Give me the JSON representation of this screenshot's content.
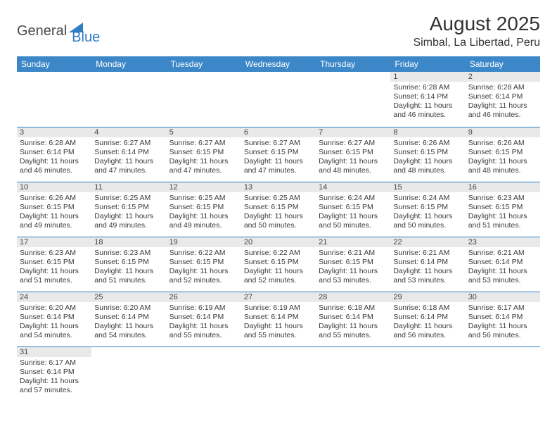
{
  "logo": {
    "main": "General",
    "sub": "Blue"
  },
  "title": "August 2025",
  "location": "Simbal, La Libertad, Peru",
  "colors": {
    "header_bg": "#3c87c7",
    "header_text": "#ffffff",
    "row_border": "#2f7fc2",
    "daynum_bg": "#e9e9e9",
    "body_text": "#3a3a3a",
    "logo_sub": "#2f7fc2",
    "logo_main": "#4a4a4a"
  },
  "weekdays": [
    "Sunday",
    "Monday",
    "Tuesday",
    "Wednesday",
    "Thursday",
    "Friday",
    "Saturday"
  ],
  "weeks": [
    [
      null,
      null,
      null,
      null,
      null,
      {
        "n": "1",
        "sr": "Sunrise: 6:28 AM",
        "ss": "Sunset: 6:14 PM",
        "dl": "Daylight: 11 hours and 46 minutes."
      },
      {
        "n": "2",
        "sr": "Sunrise: 6:28 AM",
        "ss": "Sunset: 6:14 PM",
        "dl": "Daylight: 11 hours and 46 minutes."
      }
    ],
    [
      {
        "n": "3",
        "sr": "Sunrise: 6:28 AM",
        "ss": "Sunset: 6:14 PM",
        "dl": "Daylight: 11 hours and 46 minutes."
      },
      {
        "n": "4",
        "sr": "Sunrise: 6:27 AM",
        "ss": "Sunset: 6:14 PM",
        "dl": "Daylight: 11 hours and 47 minutes."
      },
      {
        "n": "5",
        "sr": "Sunrise: 6:27 AM",
        "ss": "Sunset: 6:15 PM",
        "dl": "Daylight: 11 hours and 47 minutes."
      },
      {
        "n": "6",
        "sr": "Sunrise: 6:27 AM",
        "ss": "Sunset: 6:15 PM",
        "dl": "Daylight: 11 hours and 47 minutes."
      },
      {
        "n": "7",
        "sr": "Sunrise: 6:27 AM",
        "ss": "Sunset: 6:15 PM",
        "dl": "Daylight: 11 hours and 48 minutes."
      },
      {
        "n": "8",
        "sr": "Sunrise: 6:26 AM",
        "ss": "Sunset: 6:15 PM",
        "dl": "Daylight: 11 hours and 48 minutes."
      },
      {
        "n": "9",
        "sr": "Sunrise: 6:26 AM",
        "ss": "Sunset: 6:15 PM",
        "dl": "Daylight: 11 hours and 48 minutes."
      }
    ],
    [
      {
        "n": "10",
        "sr": "Sunrise: 6:26 AM",
        "ss": "Sunset: 6:15 PM",
        "dl": "Daylight: 11 hours and 49 minutes."
      },
      {
        "n": "11",
        "sr": "Sunrise: 6:25 AM",
        "ss": "Sunset: 6:15 PM",
        "dl": "Daylight: 11 hours and 49 minutes."
      },
      {
        "n": "12",
        "sr": "Sunrise: 6:25 AM",
        "ss": "Sunset: 6:15 PM",
        "dl": "Daylight: 11 hours and 49 minutes."
      },
      {
        "n": "13",
        "sr": "Sunrise: 6:25 AM",
        "ss": "Sunset: 6:15 PM",
        "dl": "Daylight: 11 hours and 50 minutes."
      },
      {
        "n": "14",
        "sr": "Sunrise: 6:24 AM",
        "ss": "Sunset: 6:15 PM",
        "dl": "Daylight: 11 hours and 50 minutes."
      },
      {
        "n": "15",
        "sr": "Sunrise: 6:24 AM",
        "ss": "Sunset: 6:15 PM",
        "dl": "Daylight: 11 hours and 50 minutes."
      },
      {
        "n": "16",
        "sr": "Sunrise: 6:23 AM",
        "ss": "Sunset: 6:15 PM",
        "dl": "Daylight: 11 hours and 51 minutes."
      }
    ],
    [
      {
        "n": "17",
        "sr": "Sunrise: 6:23 AM",
        "ss": "Sunset: 6:15 PM",
        "dl": "Daylight: 11 hours and 51 minutes."
      },
      {
        "n": "18",
        "sr": "Sunrise: 6:23 AM",
        "ss": "Sunset: 6:15 PM",
        "dl": "Daylight: 11 hours and 51 minutes."
      },
      {
        "n": "19",
        "sr": "Sunrise: 6:22 AM",
        "ss": "Sunset: 6:15 PM",
        "dl": "Daylight: 11 hours and 52 minutes."
      },
      {
        "n": "20",
        "sr": "Sunrise: 6:22 AM",
        "ss": "Sunset: 6:15 PM",
        "dl": "Daylight: 11 hours and 52 minutes."
      },
      {
        "n": "21",
        "sr": "Sunrise: 6:21 AM",
        "ss": "Sunset: 6:15 PM",
        "dl": "Daylight: 11 hours and 53 minutes."
      },
      {
        "n": "22",
        "sr": "Sunrise: 6:21 AM",
        "ss": "Sunset: 6:14 PM",
        "dl": "Daylight: 11 hours and 53 minutes."
      },
      {
        "n": "23",
        "sr": "Sunrise: 6:21 AM",
        "ss": "Sunset: 6:14 PM",
        "dl": "Daylight: 11 hours and 53 minutes."
      }
    ],
    [
      {
        "n": "24",
        "sr": "Sunrise: 6:20 AM",
        "ss": "Sunset: 6:14 PM",
        "dl": "Daylight: 11 hours and 54 minutes."
      },
      {
        "n": "25",
        "sr": "Sunrise: 6:20 AM",
        "ss": "Sunset: 6:14 PM",
        "dl": "Daylight: 11 hours and 54 minutes."
      },
      {
        "n": "26",
        "sr": "Sunrise: 6:19 AM",
        "ss": "Sunset: 6:14 PM",
        "dl": "Daylight: 11 hours and 55 minutes."
      },
      {
        "n": "27",
        "sr": "Sunrise: 6:19 AM",
        "ss": "Sunset: 6:14 PM",
        "dl": "Daylight: 11 hours and 55 minutes."
      },
      {
        "n": "28",
        "sr": "Sunrise: 6:18 AM",
        "ss": "Sunset: 6:14 PM",
        "dl": "Daylight: 11 hours and 55 minutes."
      },
      {
        "n": "29",
        "sr": "Sunrise: 6:18 AM",
        "ss": "Sunset: 6:14 PM",
        "dl": "Daylight: 11 hours and 56 minutes."
      },
      {
        "n": "30",
        "sr": "Sunrise: 6:17 AM",
        "ss": "Sunset: 6:14 PM",
        "dl": "Daylight: 11 hours and 56 minutes."
      }
    ],
    [
      {
        "n": "31",
        "sr": "Sunrise: 6:17 AM",
        "ss": "Sunset: 6:14 PM",
        "dl": "Daylight: 11 hours and 57 minutes."
      },
      null,
      null,
      null,
      null,
      null,
      null
    ]
  ]
}
